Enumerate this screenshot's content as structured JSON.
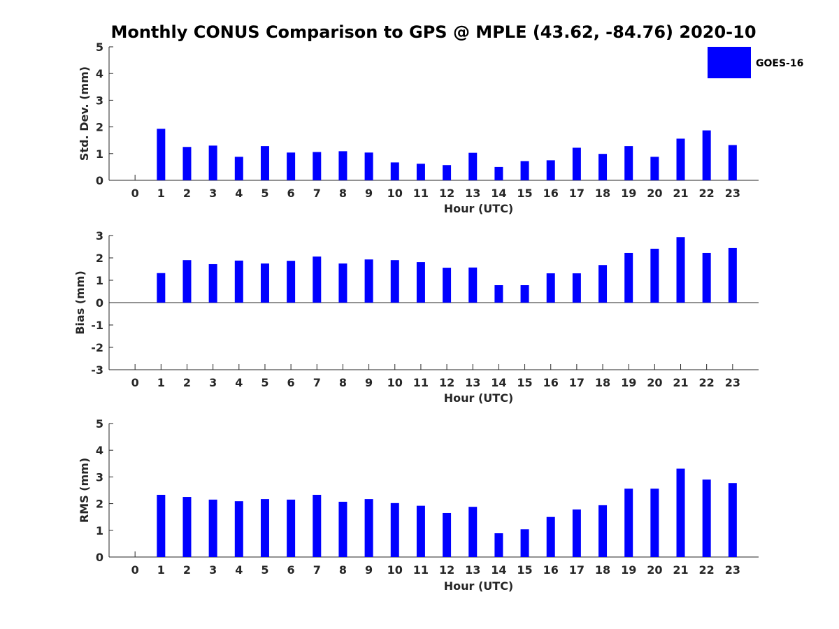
{
  "title": "Monthly CONUS Comparison to GPS @ MPLE (43.62, -84.76) 2020-10",
  "legend": {
    "label": "GOES-16",
    "color": "#0000ff",
    "placement": "top-right"
  },
  "chart_data": [
    {
      "type": "bar",
      "name": "std-dev",
      "xlabel": "Hour (UTC)",
      "ylabel": "Std. Dev. (mm)",
      "categories": [
        0,
        1,
        2,
        3,
        4,
        5,
        6,
        7,
        8,
        9,
        10,
        11,
        12,
        13,
        14,
        15,
        16,
        17,
        18,
        19,
        20,
        21,
        22,
        23
      ],
      "xlim": [
        -1,
        24
      ],
      "ylim": [
        0,
        5
      ],
      "yticks": [
        0,
        1,
        2,
        3,
        4,
        5
      ],
      "series": [
        {
          "name": "GOES-16",
          "color": "#0000ff",
          "values": [
            null,
            1.93,
            1.25,
            1.3,
            0.88,
            1.28,
            1.04,
            1.06,
            1.09,
            1.04,
            0.67,
            0.62,
            0.57,
            1.03,
            0.5,
            0.72,
            0.75,
            1.22,
            0.99,
            1.28,
            0.88,
            1.56,
            1.87,
            1.32
          ]
        }
      ]
    },
    {
      "type": "bar",
      "name": "bias",
      "xlabel": "Hour (UTC)",
      "ylabel": "Bias (mm)",
      "categories": [
        0,
        1,
        2,
        3,
        4,
        5,
        6,
        7,
        8,
        9,
        10,
        11,
        12,
        13,
        14,
        15,
        16,
        17,
        18,
        19,
        20,
        21,
        22,
        23
      ],
      "xlim": [
        -1,
        24
      ],
      "ylim": [
        -3,
        3
      ],
      "yticks": [
        -3,
        -2,
        -1,
        0,
        1,
        2,
        3
      ],
      "series": [
        {
          "name": "GOES-16",
          "color": "#0000ff",
          "values": [
            null,
            1.32,
            1.9,
            1.72,
            1.88,
            1.75,
            1.87,
            2.06,
            1.75,
            1.93,
            1.9,
            1.81,
            1.56,
            1.57,
            0.78,
            0.78,
            1.31,
            1.31,
            1.68,
            2.22,
            2.41,
            2.93,
            2.22,
            2.44
          ]
        }
      ]
    },
    {
      "type": "bar",
      "name": "rms",
      "xlabel": "Hour (UTC)",
      "ylabel": "RMS (mm)",
      "categories": [
        0,
        1,
        2,
        3,
        4,
        5,
        6,
        7,
        8,
        9,
        10,
        11,
        12,
        13,
        14,
        15,
        16,
        17,
        18,
        19,
        20,
        21,
        22,
        23
      ],
      "xlim": [
        -1,
        24
      ],
      "ylim": [
        0,
        5
      ],
      "yticks": [
        0,
        1,
        2,
        3,
        4,
        5
      ],
      "series": [
        {
          "name": "GOES-16",
          "color": "#0000ff",
          "values": [
            null,
            2.33,
            2.25,
            2.15,
            2.09,
            2.17,
            2.15,
            2.33,
            2.07,
            2.17,
            2.02,
            1.92,
            1.65,
            1.88,
            0.89,
            1.04,
            1.5,
            1.78,
            1.94,
            2.56,
            2.56,
            3.31,
            2.9,
            2.77
          ]
        }
      ]
    }
  ]
}
